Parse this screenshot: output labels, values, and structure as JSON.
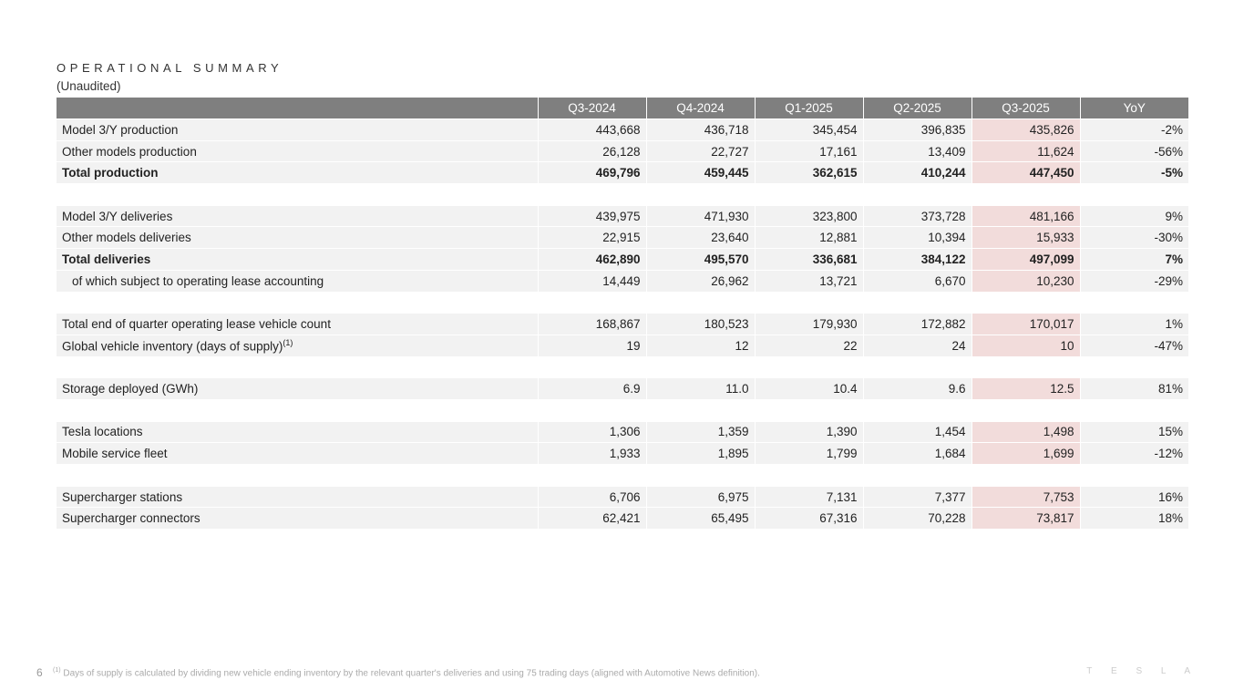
{
  "title": "OPERATIONAL SUMMARY",
  "subtitle": "(Unaudited)",
  "colors": {
    "header_bg": "#7f7f7f",
    "row_bg": "#f2f2f2",
    "highlight": "#f2dcdb"
  },
  "columns": [
    "Q3-2024",
    "Q4-2024",
    "Q1-2025",
    "Q2-2025",
    "Q3-2025",
    "YoY"
  ],
  "highlight_column": "Q3-2025",
  "rows": [
    {
      "label": "Model 3/Y production",
      "values": [
        "443,668",
        "436,718",
        "345,454",
        "396,835",
        "435,826",
        "-2%"
      ]
    },
    {
      "label": "Other models production",
      "values": [
        "26,128",
        "22,727",
        "17,161",
        "13,409",
        "11,624",
        "-56%"
      ]
    },
    {
      "label": "Total production",
      "bold": true,
      "values": [
        "469,796",
        "459,445",
        "362,615",
        "410,244",
        "447,450",
        "-5%"
      ]
    },
    {
      "blank": true
    },
    {
      "label": "Model 3/Y deliveries",
      "values": [
        "439,975",
        "471,930",
        "323,800",
        "373,728",
        "481,166",
        "9%"
      ]
    },
    {
      "label": "Other models deliveries",
      "values": [
        "22,915",
        "23,640",
        "12,881",
        "10,394",
        "15,933",
        "-30%"
      ]
    },
    {
      "label": "Total deliveries",
      "bold": true,
      "values": [
        "462,890",
        "495,570",
        "336,681",
        "384,122",
        "497,099",
        "7%"
      ]
    },
    {
      "label": "of which subject to operating lease accounting",
      "indent": true,
      "values": [
        "14,449",
        "26,962",
        "13,721",
        "6,670",
        "10,230",
        "-29%"
      ]
    },
    {
      "blank": true
    },
    {
      "label": "Total end of quarter operating lease vehicle count",
      "values": [
        "168,867",
        "180,523",
        "179,930",
        "172,882",
        "170,017",
        "1%"
      ]
    },
    {
      "label": "Global vehicle inventory (days of supply)",
      "sup": "(1)",
      "values": [
        "19",
        "12",
        "22",
        "24",
        "10",
        "-47%"
      ]
    },
    {
      "blank": true
    },
    {
      "label": "Storage deployed (GWh)",
      "values": [
        "6.9",
        "11.0",
        "10.4",
        "9.6",
        "12.5",
        "81%"
      ]
    },
    {
      "blank": true
    },
    {
      "label": "Tesla locations",
      "values": [
        "1,306",
        "1,359",
        "1,390",
        "1,454",
        "1,498",
        "15%"
      ]
    },
    {
      "label": "Mobile service fleet",
      "values": [
        "1,933",
        "1,895",
        "1,799",
        "1,684",
        "1,699",
        "-12%"
      ]
    },
    {
      "blank": true
    },
    {
      "label": "Supercharger stations",
      "values": [
        "6,706",
        "6,975",
        "7,131",
        "7,377",
        "7,753",
        "16%"
      ]
    },
    {
      "label": "Supercharger connectors",
      "values": [
        "62,421",
        "65,495",
        "67,316",
        "70,228",
        "73,817",
        "18%"
      ]
    }
  ],
  "footer": {
    "page_number": "6",
    "footnote_mark": "(1)",
    "footnote": "Days of supply is calculated by dividing new vehicle ending inventory by the relevant quarter's deliveries and using 75 trading days (aligned with Automotive News definition).",
    "logo": "TESLA"
  }
}
